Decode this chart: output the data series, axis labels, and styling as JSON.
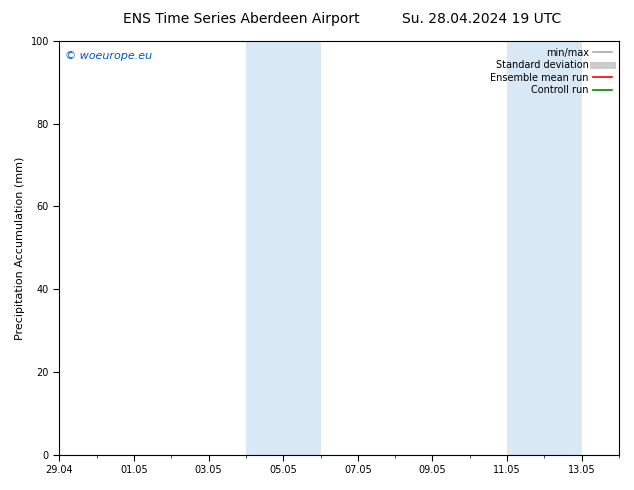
{
  "title_left": "ENS Time Series Aberdeen Airport",
  "title_right": "Su. 28.04.2024 19 UTC",
  "ylabel": "Precipitation Accumulation (mm)",
  "ylim": [
    0,
    100
  ],
  "yticks": [
    0,
    20,
    40,
    60,
    80,
    100
  ],
  "xtick_labels": [
    "29.04",
    "01.05",
    "03.05",
    "05.05",
    "07.05",
    "09.05",
    "11.05",
    "13.05"
  ],
  "xtick_positions_days": [
    0,
    2,
    4,
    6,
    8,
    10,
    12,
    14
  ],
  "xlim": [
    0,
    15
  ],
  "shaded_regions": [
    {
      "start_days": 5.0,
      "end_days": 7.0
    },
    {
      "start_days": 12.0,
      "end_days": 14.0
    }
  ],
  "shaded_color": "#d8e8f5",
  "watermark_text": "© woeurope.eu",
  "watermark_color": "#0055cc",
  "background_color": "#ffffff",
  "plot_bg_color": "#ffffff",
  "legend_entries": [
    {
      "label": "min/max",
      "color": "#aaaaaa",
      "lw": 1.2
    },
    {
      "label": "Standard deviation",
      "color": "#cccccc",
      "lw": 5
    },
    {
      "label": "Ensemble mean run",
      "color": "#ff0000",
      "lw": 1.2
    },
    {
      "label": "Controll run",
      "color": "#008800",
      "lw": 1.2
    }
  ],
  "tick_fontsize": 7,
  "label_fontsize": 8,
  "title_fontsize": 10,
  "legend_fontsize": 7
}
